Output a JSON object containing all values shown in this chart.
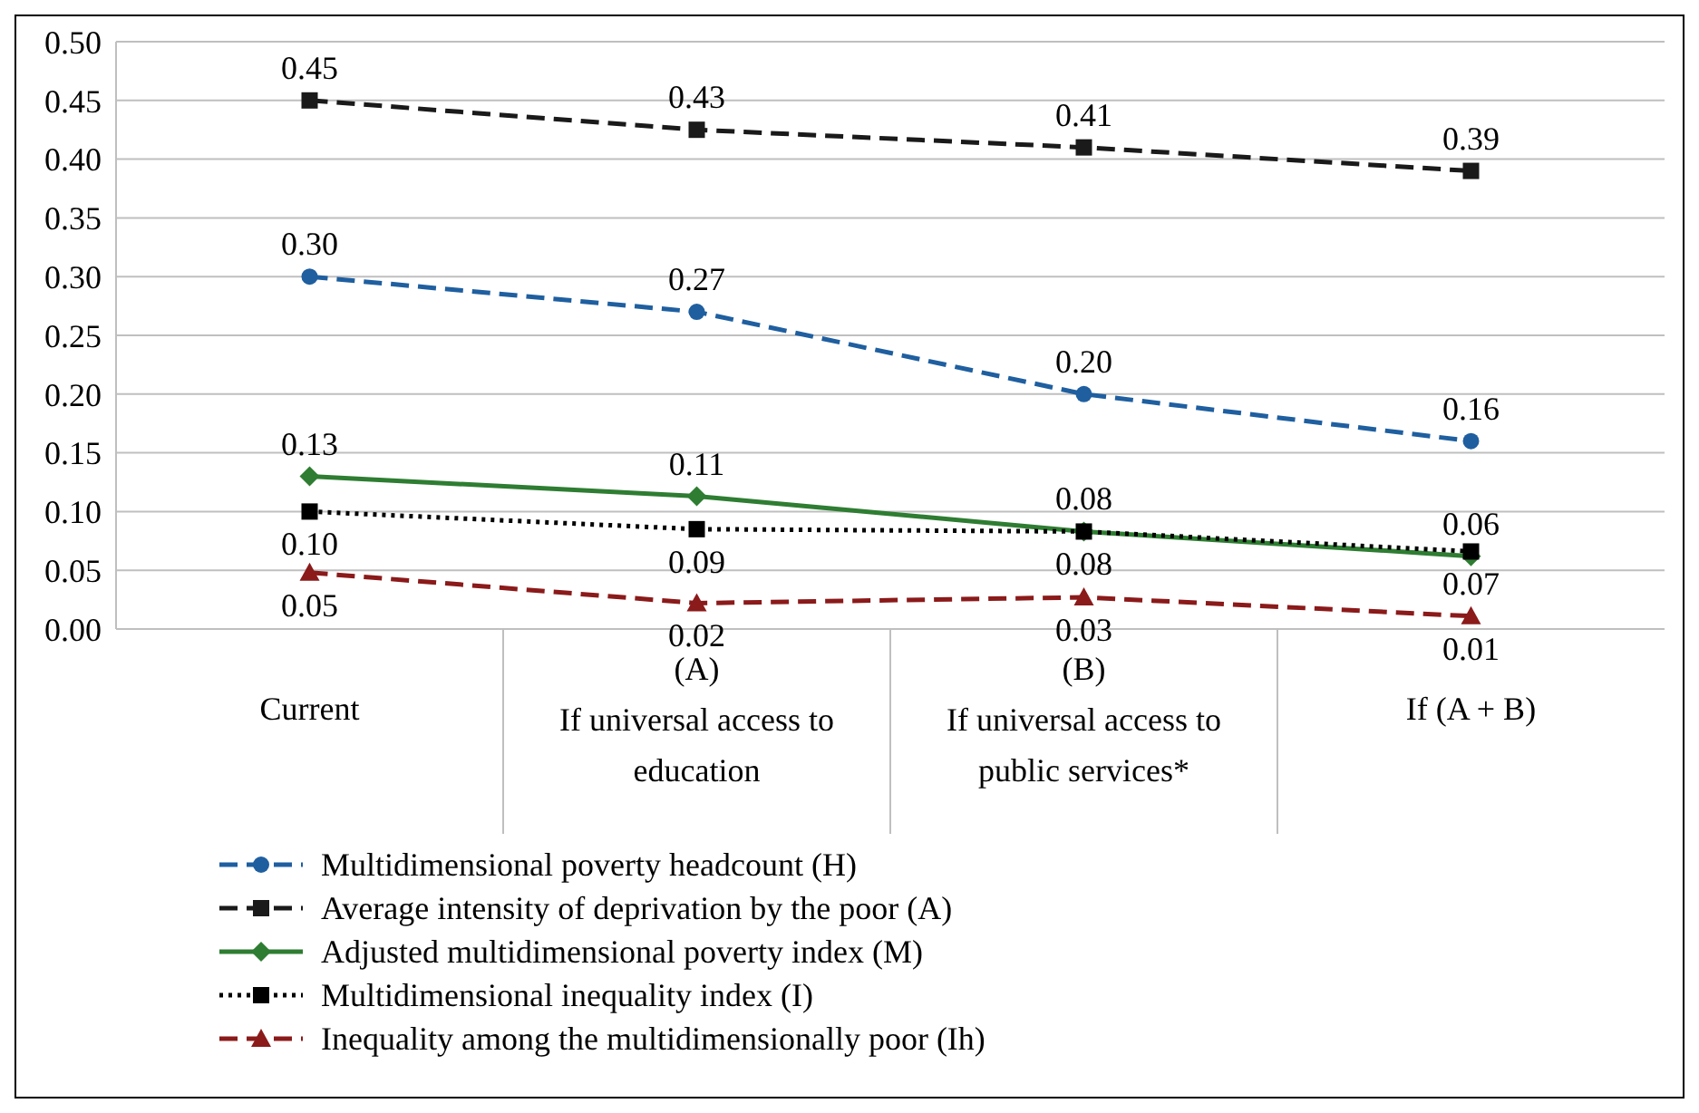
{
  "chart_data": {
    "type": "line",
    "categories": [
      "Current",
      "(A)\nIf universal access to\neducation",
      "(B)\nIf universal access to\npublic services*",
      "If (A + B)"
    ],
    "series": [
      {
        "name": "Multidimensional poverty headcount (H)",
        "color": "#1f5fa0",
        "marker": "circle",
        "line_style": "dashed",
        "values": [
          0.3,
          0.27,
          0.2,
          0.16
        ],
        "value_labels": [
          "0.30",
          "0.27",
          "0.20",
          "0.16"
        ]
      },
      {
        "name": "Average intensity of deprivation by the poor (A)",
        "color": "#1a1a1a",
        "marker": "square",
        "line_style": "dashed",
        "values": [
          0.45,
          0.425,
          0.41,
          0.39
        ],
        "value_labels": [
          "0.45",
          "0.43",
          "0.41",
          "0.39"
        ]
      },
      {
        "name": "Adjusted multidimensional poverty index (M)",
        "color": "#2e7d32",
        "marker": "diamond",
        "line_style": "solid",
        "values": [
          0.13,
          0.113,
          0.083,
          0.062
        ],
        "value_labels": [
          "0.13",
          "0.11",
          "0.08",
          "0.06"
        ]
      },
      {
        "name": "Multidimensional inequality index (I)",
        "color": "#000000",
        "marker": "square",
        "line_style": "dotted",
        "values": [
          0.1,
          0.085,
          0.083,
          0.066
        ],
        "value_labels": [
          "0.10",
          "0.09",
          "0.08",
          "0.07"
        ]
      },
      {
        "name": "Inequality among the multidimensionally poor (Ih)",
        "color": "#8b1a1a",
        "marker": "triangle",
        "line_style": "dashed",
        "values": [
          0.048,
          0.022,
          0.027,
          0.011
        ],
        "value_labels": [
          "0.05",
          "0.02",
          "0.03",
          "0.01"
        ]
      }
    ],
    "ylim": [
      0,
      0.5
    ],
    "yticks": [
      {
        "value": 0,
        "label": "0.00"
      },
      {
        "value": 0.05,
        "label": "0.05"
      },
      {
        "value": 0.1,
        "label": "0.10"
      },
      {
        "value": 0.15,
        "label": "0.15"
      },
      {
        "value": 0.2,
        "label": "0.20"
      },
      {
        "value": 0.25,
        "label": "0.25"
      },
      {
        "value": 0.3,
        "label": "0.30"
      },
      {
        "value": 0.35,
        "label": "0.35"
      },
      {
        "value": 0.4,
        "label": "0.40"
      },
      {
        "value": 0.45,
        "label": "0.45"
      },
      {
        "value": 0.5,
        "label": "0.50"
      }
    ],
    "grid": "y",
    "legend": "bottom"
  }
}
